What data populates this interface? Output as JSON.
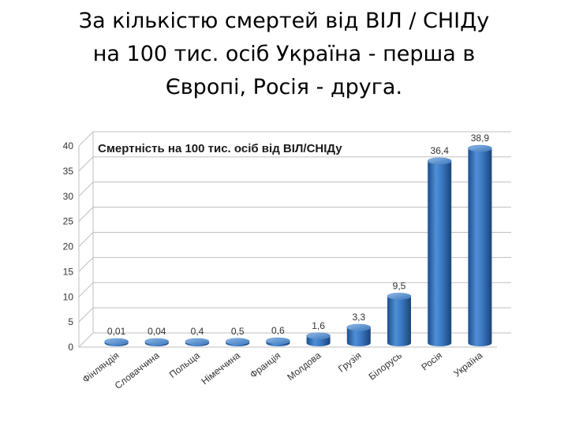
{
  "slide": {
    "title_lines": [
      "За кількістю смертей від ВІЛ / СНІДу",
      "на 100 тис. осіб Україна - перша в",
      "Європі, Росія - друга."
    ]
  },
  "colors": {
    "bar": "#2e6db4",
    "bar_light": "#6a9fd8",
    "bar_dark": "#1d4f8c",
    "grid": "#bfbfbf",
    "text": "#333333"
  },
  "chart_data": {
    "type": "bar",
    "title": "Смертність на 100 тис. осіб від ВІЛ/СНІДу",
    "categories": [
      "Фінляндія",
      "Словаччина",
      "Польща",
      "Німеччина",
      "Франція",
      "Молдова",
      "Грузія",
      "Білорусь",
      "Росія",
      "Україна"
    ],
    "values": [
      0.01,
      0.04,
      0.4,
      0.5,
      0.6,
      1.6,
      3.3,
      9.5,
      36.4,
      38.9
    ],
    "value_labels": [
      "0,01",
      "0,04",
      "0,4",
      "0,5",
      "0,6",
      "1,6",
      "3,3",
      "9,5",
      "36,4",
      "38,9"
    ],
    "ylim": [
      0,
      40
    ],
    "yticks": [
      0,
      5,
      10,
      15,
      20,
      25,
      30,
      35,
      40
    ],
    "grid": true,
    "legend": "none",
    "style": "3d-cylinder"
  }
}
